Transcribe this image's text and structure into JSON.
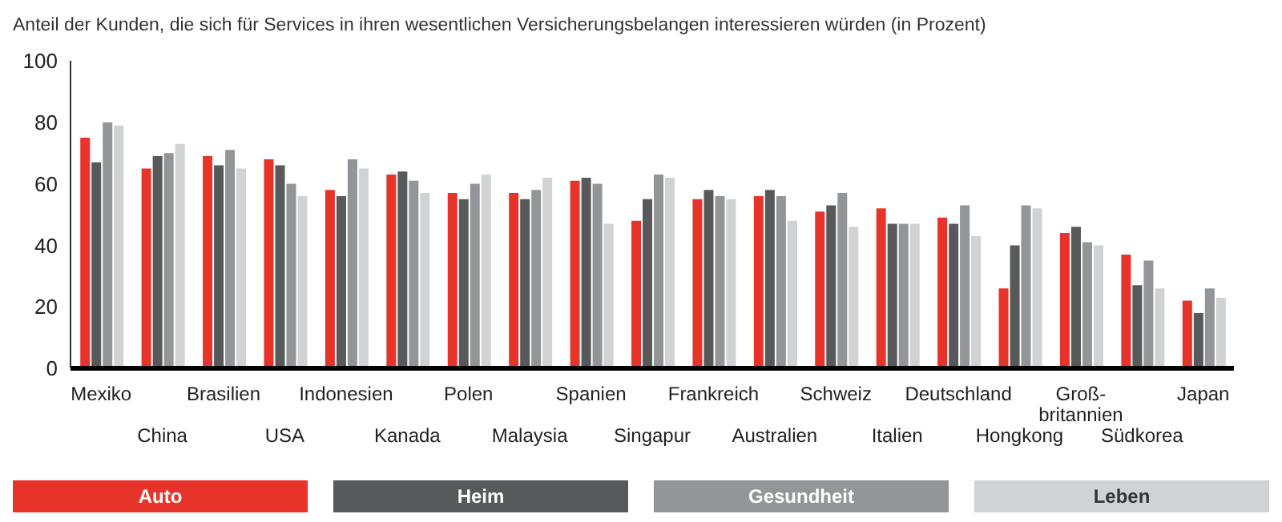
{
  "chart_data": {
    "type": "bar",
    "title": "Anteil der Kunden, die sich für Services in ihren wesentlichen Versicherungsbelangen interessieren würden (in Prozent)",
    "categories": [
      "Mexiko",
      "China",
      "Brasilien",
      "USA",
      "Indonesien",
      "Kanada",
      "Polen",
      "Malaysia",
      "Spanien",
      "Singapur",
      "Frankreich",
      "Australien",
      "Schweiz",
      "Italien",
      "Deutschland",
      "Hongkong",
      "Groß-\nbritannien",
      "Südkorea",
      "Japan"
    ],
    "series": [
      {
        "name": "Auto",
        "color": "#e8332a",
        "values": [
          75,
          65,
          69,
          68,
          58,
          63,
          57,
          57,
          61,
          48,
          55,
          56,
          51,
          52,
          49,
          26,
          44,
          37,
          22
        ]
      },
      {
        "name": "Heim",
        "color": "#58595b",
        "values": [
          67,
          69,
          66,
          66,
          56,
          64,
          55,
          55,
          62,
          55,
          58,
          58,
          53,
          47,
          47,
          40,
          46,
          27,
          18
        ]
      },
      {
        "name": "Gesundheit",
        "color": "#939598",
        "values": [
          80,
          70,
          71,
          60,
          68,
          61,
          60,
          58,
          60,
          63,
          56,
          56,
          57,
          47,
          53,
          53,
          41,
          35,
          26
        ]
      },
      {
        "name": "Leben",
        "color": "#d1d2d4",
        "values": [
          79,
          73,
          65,
          56,
          65,
          57,
          63,
          62,
          47,
          62,
          55,
          48,
          46,
          47,
          43,
          52,
          40,
          26,
          23
        ]
      }
    ],
    "ylim": [
      0,
      100
    ],
    "yticks": [
      0,
      20,
      40,
      60,
      80,
      100
    ],
    "legend": "bottom"
  }
}
